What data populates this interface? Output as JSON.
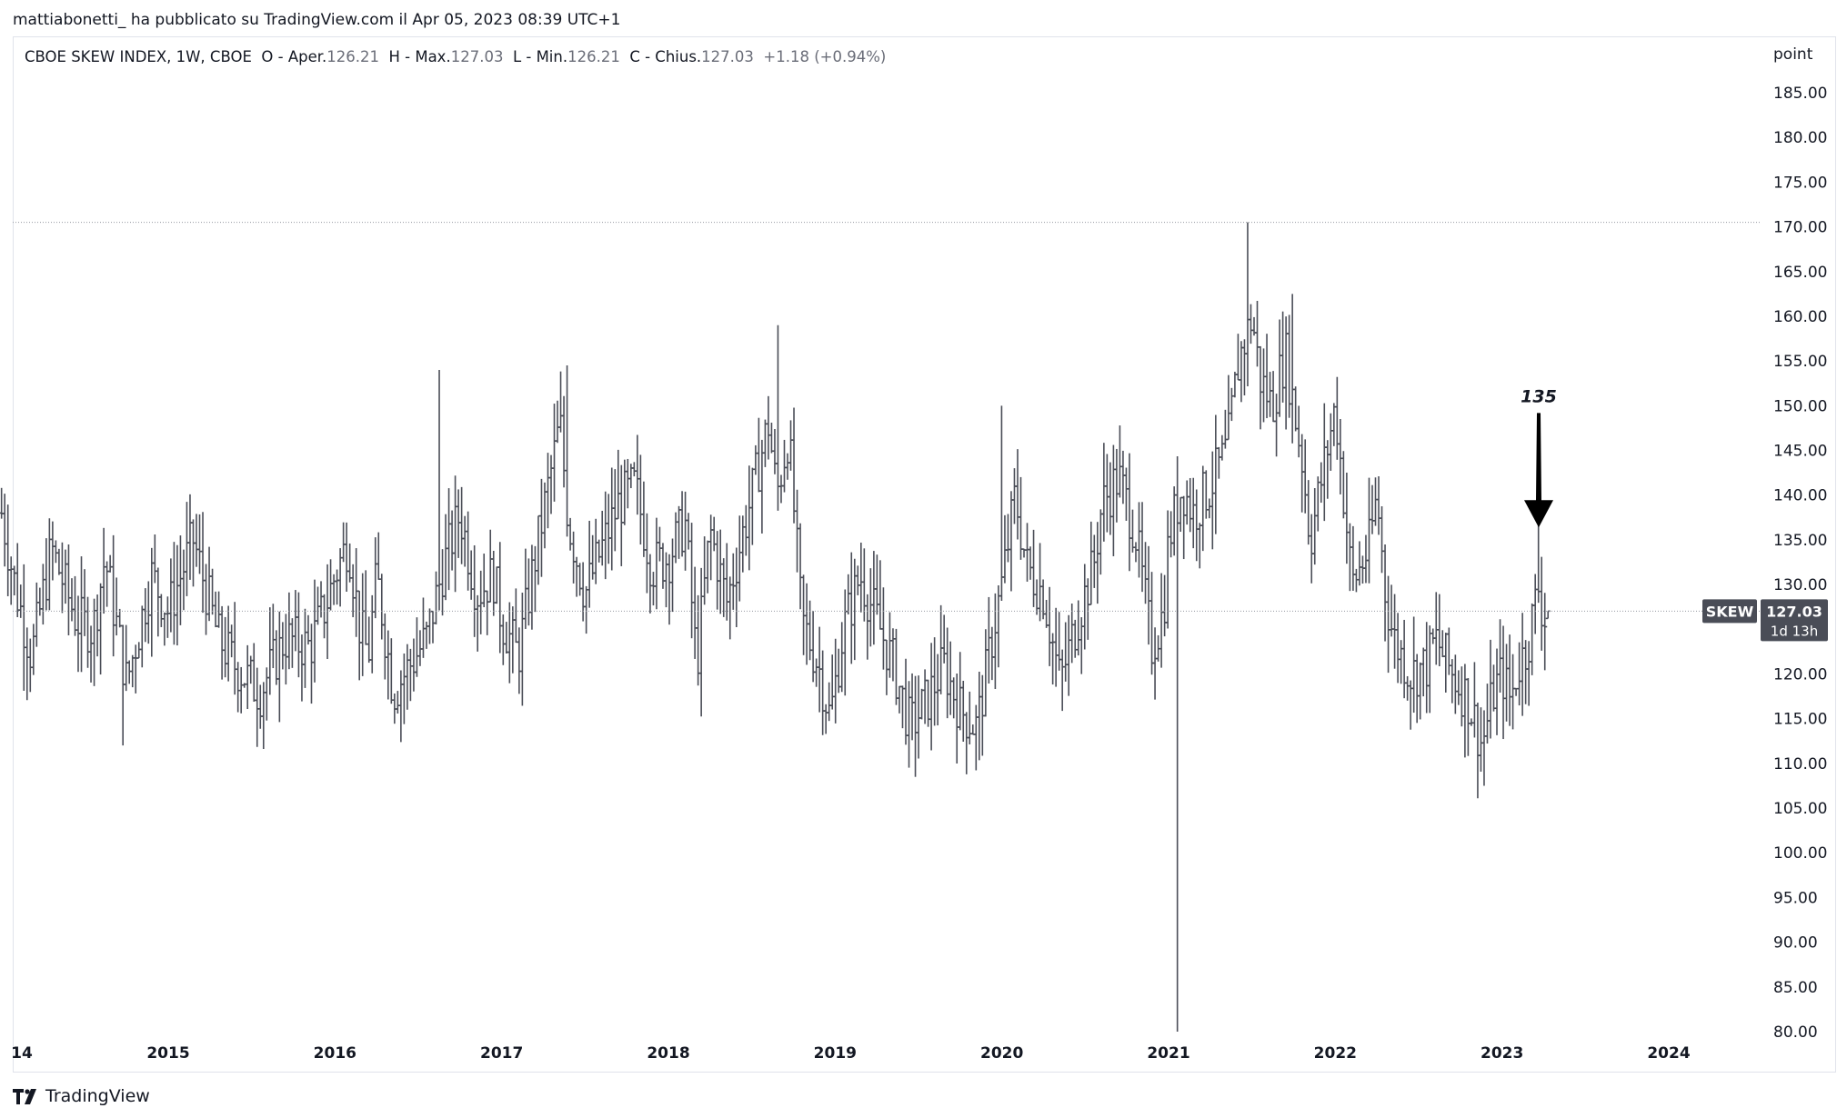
{
  "header": {
    "published_by": "mattiabonetti_ ha pubblicato su TradingView.com il Apr 05, 2023 08:39 UTC+1"
  },
  "legend": {
    "symbol": "CBOE SKEW INDEX, 1W, CBOE",
    "o_label": "O - Aper.",
    "o_value": "126.21",
    "h_label": "H - Max.",
    "h_value": "127.03",
    "l_label": "L - Min.",
    "l_value": "126.21",
    "c_label": "C - Chius.",
    "c_value": "127.03",
    "change": "+1.18 (+0.94%)"
  },
  "footer": {
    "brand": "TradingView"
  },
  "colors": {
    "bar": "#4a4d57",
    "tag_bg": "#4a4d57",
    "tag_text": "#ffffff",
    "dotted": "#9598a1"
  },
  "chart_data": {
    "type": "ohlc",
    "symbol_tag": "SKEW",
    "last_price": "127.03",
    "countdown": "1d 13h",
    "y_unit": "point",
    "ylim": [
      80,
      190
    ],
    "y_ticks": [
      "185.00",
      "180.00",
      "175.00",
      "170.00",
      "165.00",
      "160.00",
      "155.00",
      "150.00",
      "145.00",
      "140.00",
      "135.00",
      "130.00",
      "125.00",
      "120.00",
      "115.00",
      "110.00",
      "105.00",
      "100.00",
      "95.00",
      "90.00",
      "85.00",
      "80.00"
    ],
    "y_tick_values": [
      185,
      180,
      175,
      170,
      165,
      160,
      155,
      150,
      145,
      140,
      135,
      130,
      125,
      120,
      115,
      110,
      105,
      100,
      95,
      90,
      85,
      80
    ],
    "x_range": [
      2014.0,
      2024.5
    ],
    "x_ticks": [
      "14",
      "2015",
      "2016",
      "2017",
      "2018",
      "2019",
      "2020",
      "2021",
      "2022",
      "2023",
      "2024"
    ],
    "x_tick_values": [
      2014.0,
      2015.0,
      2016.0,
      2017.0,
      2018.0,
      2019.0,
      2020.0,
      2021.0,
      2022.0,
      2023.0,
      2024.0
    ],
    "x_tick_bold": [
      false,
      false,
      false,
      false,
      false,
      false,
      false,
      false,
      false,
      false,
      false
    ],
    "max_level": 170.5,
    "current_level": 127.03,
    "annotation": {
      "text": "135",
      "x": 2023.22,
      "target_y": 137,
      "label_y": 150
    },
    "anchors": [
      [
        2014.0,
        138
      ],
      [
        2014.08,
        130
      ],
      [
        2014.18,
        122
      ],
      [
        2014.3,
        134
      ],
      [
        2014.45,
        126
      ],
      [
        2014.55,
        125
      ],
      [
        2014.62,
        133
      ],
      [
        2014.75,
        119
      ],
      [
        2014.9,
        131
      ],
      [
        2015.0,
        127
      ],
      [
        2015.15,
        135
      ],
      [
        2015.3,
        124
      ],
      [
        2015.4,
        121
      ],
      [
        2015.55,
        118
      ],
      [
        2015.7,
        124
      ],
      [
        2015.85,
        123
      ],
      [
        2015.95,
        128
      ],
      [
        2016.0,
        131
      ],
      [
        2016.08,
        135
      ],
      [
        2016.15,
        125
      ],
      [
        2016.2,
        122
      ],
      [
        2016.25,
        131
      ],
      [
        2016.35,
        118
      ],
      [
        2016.45,
        121
      ],
      [
        2016.55,
        124
      ],
      [
        2016.65,
        132
      ],
      [
        2016.75,
        138
      ],
      [
        2016.85,
        129
      ],
      [
        2016.95,
        131
      ],
      [
        2017.0,
        126
      ],
      [
        2017.1,
        122
      ],
      [
        2017.2,
        133
      ],
      [
        2017.3,
        143
      ],
      [
        2017.35,
        148
      ],
      [
        2017.4,
        137
      ],
      [
        2017.5,
        129
      ],
      [
        2017.6,
        134
      ],
      [
        2017.7,
        139
      ],
      [
        2017.8,
        141
      ],
      [
        2017.9,
        132
      ],
      [
        2018.0,
        133
      ],
      [
        2018.1,
        137
      ],
      [
        2018.17,
        121
      ],
      [
        2018.25,
        136
      ],
      [
        2018.35,
        128
      ],
      [
        2018.45,
        136
      ],
      [
        2018.55,
        144
      ],
      [
        2018.6,
        148
      ],
      [
        2018.65,
        140
      ],
      [
        2018.72,
        147
      ],
      [
        2018.8,
        126
      ],
      [
        2018.9,
        121
      ],
      [
        2018.97,
        115
      ],
      [
        2019.05,
        125
      ],
      [
        2019.15,
        131
      ],
      [
        2019.25,
        126
      ],
      [
        2019.35,
        121
      ],
      [
        2019.45,
        114
      ],
      [
        2019.55,
        117
      ],
      [
        2019.65,
        121
      ],
      [
        2019.75,
        116
      ],
      [
        2019.85,
        114
      ],
      [
        2019.95,
        125
      ],
      [
        2020.0,
        130
      ],
      [
        2020.08,
        140
      ],
      [
        2020.15,
        132
      ],
      [
        2020.25,
        129
      ],
      [
        2020.35,
        119
      ],
      [
        2020.45,
        126
      ],
      [
        2020.55,
        132
      ],
      [
        2020.6,
        139
      ],
      [
        2020.7,
        142
      ],
      [
        2020.8,
        136
      ],
      [
        2020.9,
        123
      ],
      [
        2020.97,
        127
      ],
      [
        2021.0,
        135
      ],
      [
        2021.08,
        141
      ],
      [
        2021.15,
        138
      ],
      [
        2021.25,
        141
      ],
      [
        2021.35,
        145
      ],
      [
        2021.42,
        155
      ],
      [
        2021.5,
        160
      ],
      [
        2021.55,
        153
      ],
      [
        2021.62,
        150
      ],
      [
        2021.7,
        156
      ],
      [
        2021.8,
        144
      ],
      [
        2021.85,
        135
      ],
      [
        2021.92,
        142
      ],
      [
        2022.0,
        150
      ],
      [
        2022.05,
        140
      ],
      [
        2022.1,
        130
      ],
      [
        2022.2,
        134
      ],
      [
        2022.25,
        140
      ],
      [
        2022.3,
        129
      ],
      [
        2022.35,
        124
      ],
      [
        2022.45,
        120
      ],
      [
        2022.55,
        121
      ],
      [
        2022.6,
        124
      ],
      [
        2022.7,
        120
      ],
      [
        2022.8,
        117
      ],
      [
        2022.88,
        112
      ],
      [
        2022.95,
        118
      ],
      [
        2023.0,
        120
      ],
      [
        2023.05,
        117
      ],
      [
        2023.1,
        121
      ],
      [
        2023.15,
        123
      ],
      [
        2023.22,
        130
      ],
      [
        2023.25,
        126
      ],
      [
        2023.28,
        127
      ]
    ],
    "spikes": [
      {
        "x": 2014.72,
        "low": 112
      },
      {
        "x": 2016.62,
        "high": 154
      },
      {
        "x": 2017.4,
        "high": 154.5
      },
      {
        "x": 2018.65,
        "high": 159
      },
      {
        "x": 2020.0,
        "high": 150
      },
      {
        "x": 2021.05,
        "low": 80
      },
      {
        "x": 2021.48,
        "high": 170.5
      },
      {
        "x": 2021.75,
        "high": 162.5
      },
      {
        "x": 2023.22,
        "high": 137
      }
    ]
  }
}
